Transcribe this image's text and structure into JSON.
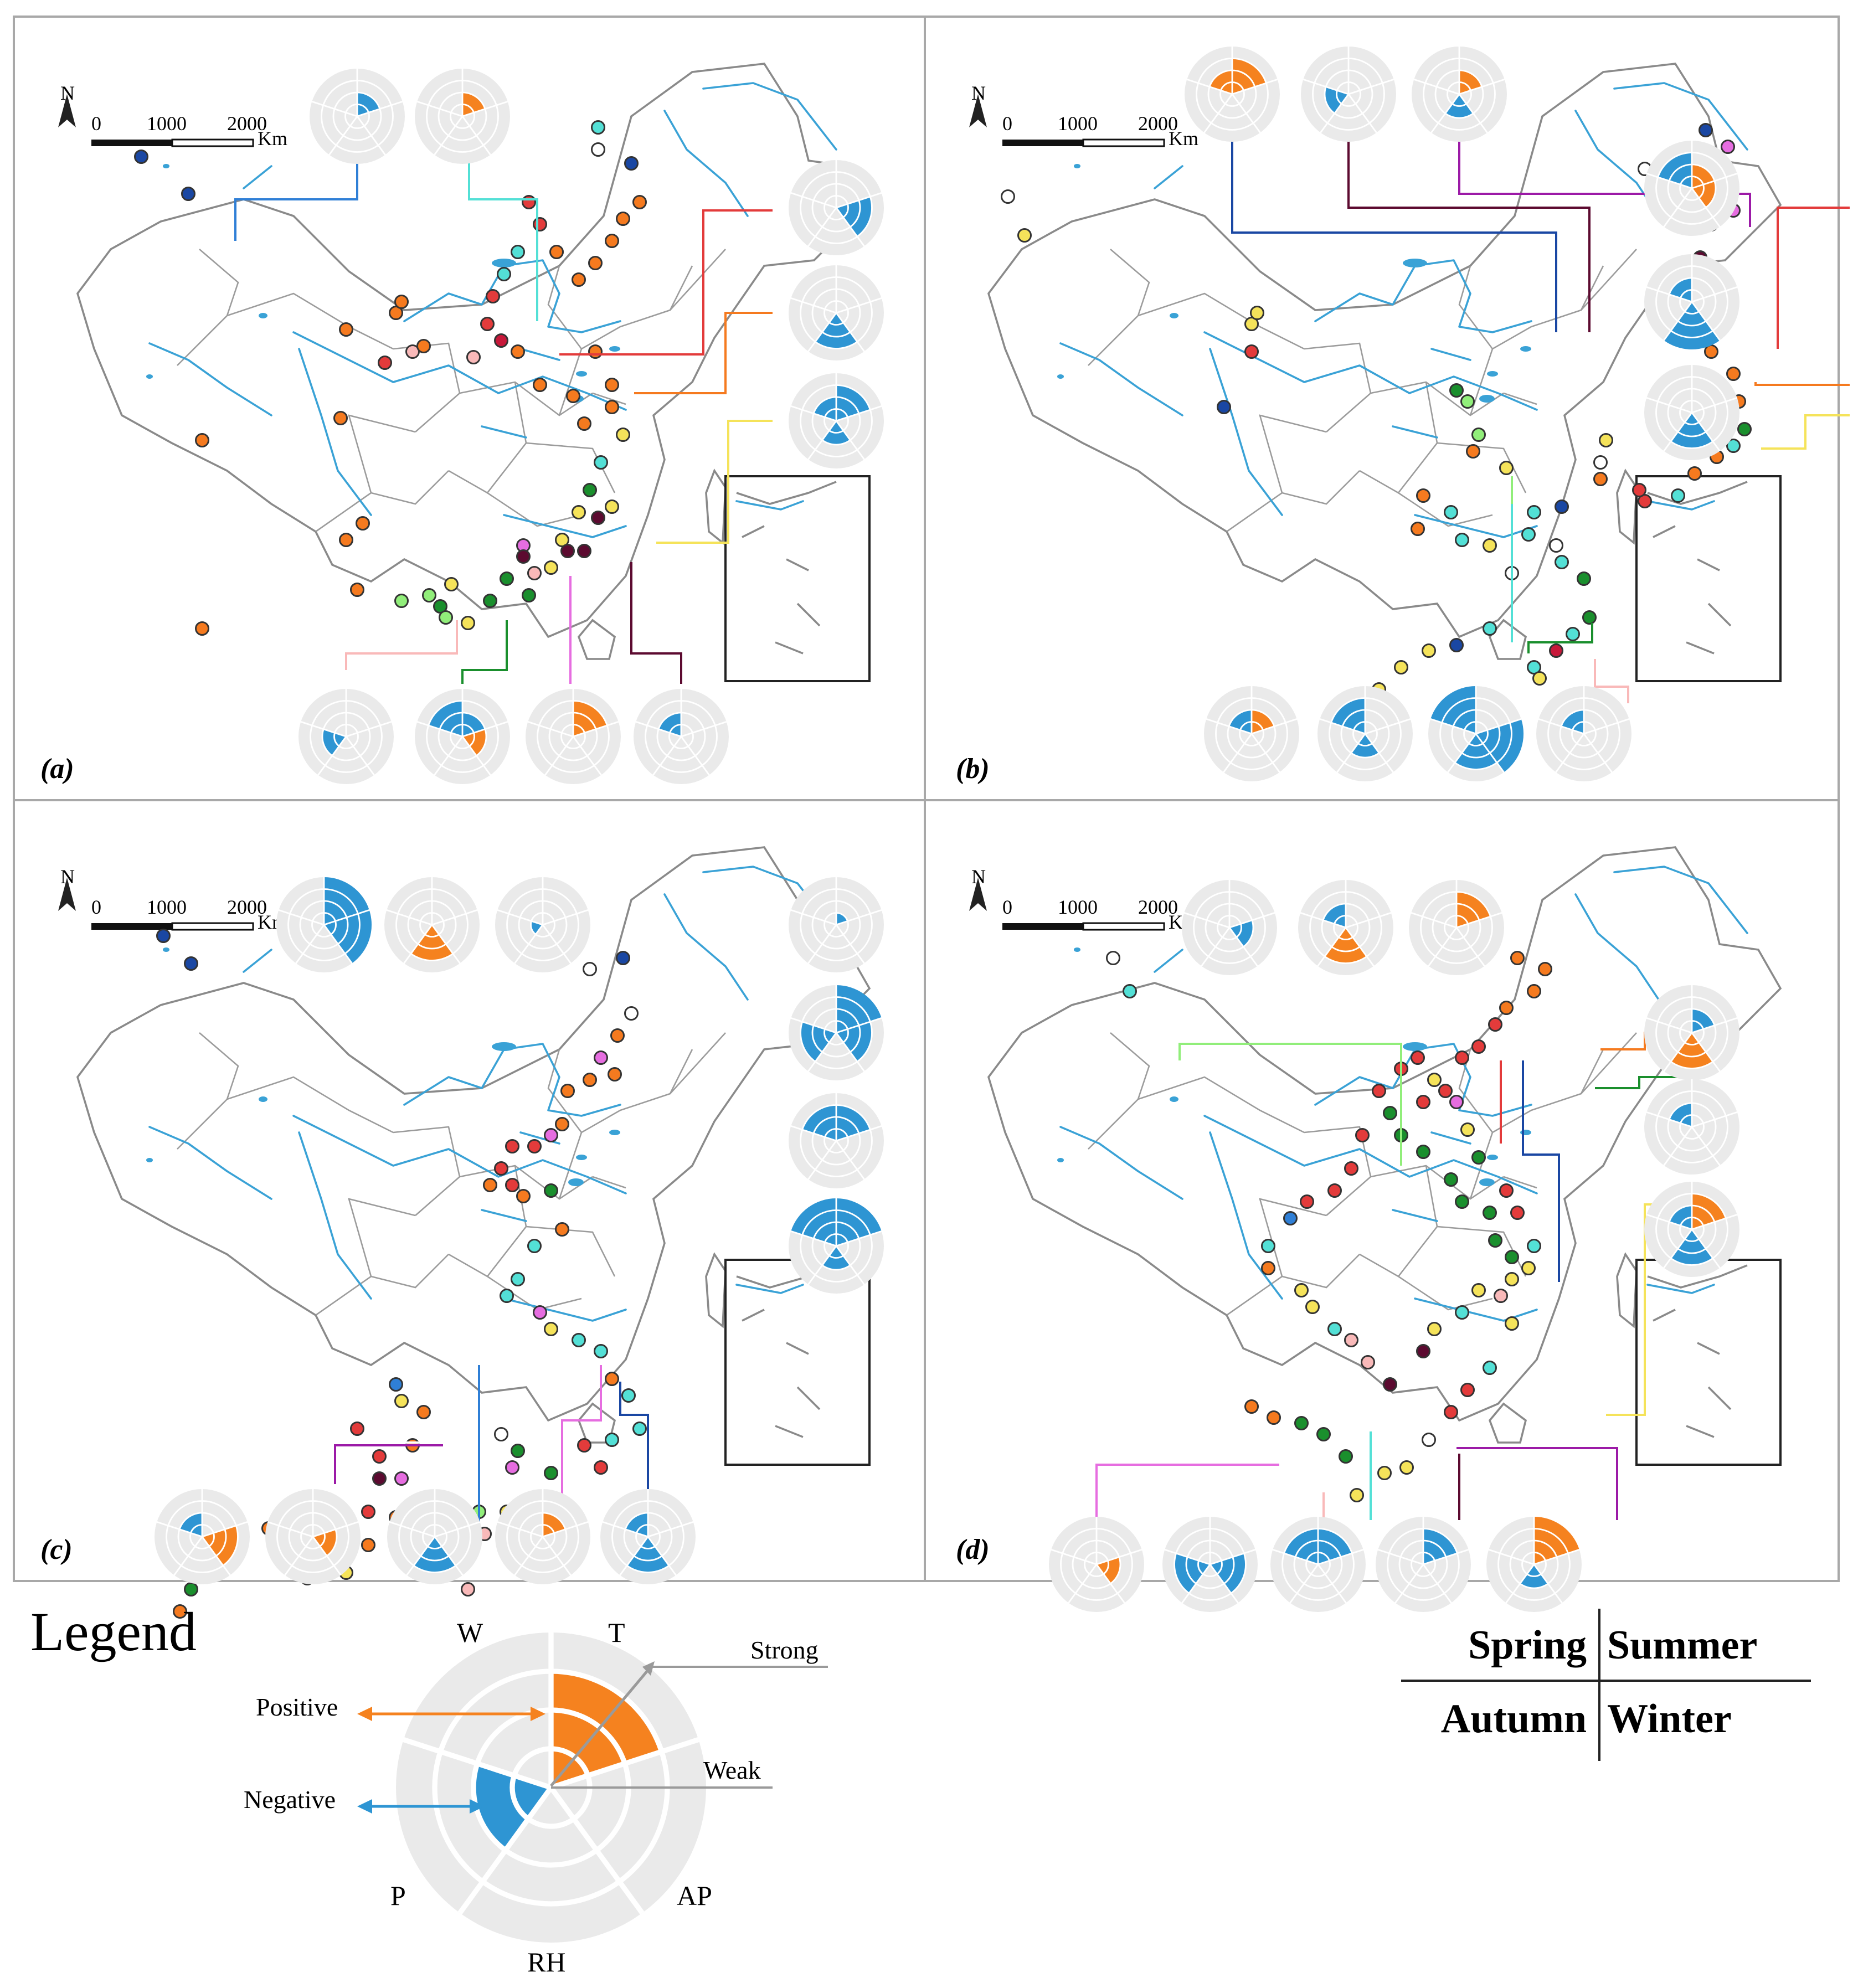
{
  "colors": {
    "positive": "#f5821f",
    "negative": "#2e95d3",
    "rose_background": "#eaeaea",
    "river": "#3aa2d6",
    "site_palette": [
      "#1a47a3",
      "#2f7fd6",
      "#53e0d6",
      "#f57a1f",
      "#e33b3b",
      "#c7183a",
      "#9c1aa7",
      "#e66de0",
      "#f5e35a",
      "#1a8f2d",
      "#91ee7a",
      "#f9b9b9",
      "#5c0a30",
      "#ffffff"
    ]
  },
  "panels": [
    {
      "label": "(a)",
      "scale": {
        "north": "N",
        "ticks": [
          "0",
          "1000",
          "2000"
        ],
        "unit": "Km"
      }
    },
    {
      "label": "(b)",
      "scale": {
        "north": "N",
        "ticks": [
          "0",
          "1000",
          "2000"
        ],
        "unit": "Km"
      }
    },
    {
      "label": "(c)",
      "scale": {
        "north": "N",
        "ticks": [
          "0",
          "1000",
          "2000"
        ],
        "unit": "Km"
      }
    },
    {
      "label": "(d)",
      "scale": {
        "north": "N",
        "ticks": [
          "0",
          "1000",
          "2000"
        ],
        "unit": "Km"
      }
    }
  ],
  "legend": {
    "title": "Legend",
    "variables": [
      "W",
      "T",
      "AP",
      "RH",
      "P"
    ],
    "positive_label": "Positive",
    "negative_label": "Negative",
    "strong_label": "Strong",
    "weak_label": "Weak",
    "example_rose": {
      "T": 3,
      "P": 2
    }
  },
  "season_key": {
    "top_left": "Spring",
    "top_right": "Summer",
    "bottom_left": "Autumn",
    "bottom_right": "Winter"
  }
}
